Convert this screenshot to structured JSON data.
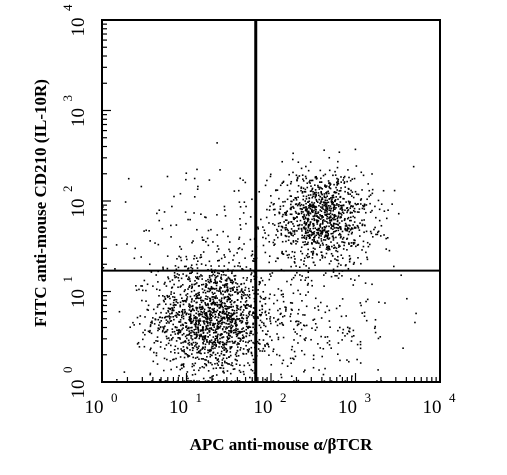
{
  "chart_data": {
    "type": "scatter",
    "subtype": "flow-cytometry-dot-plot",
    "xlabel": "APC anti-mouse α/βTCR",
    "ylabel": "FITC anti-mouse CD210 (IL-10R)",
    "x_scale": "log",
    "y_scale": "log",
    "xlim": [
      1,
      10000
    ],
    "ylim": [
      1,
      10000
    ],
    "x_ticks": [
      {
        "base": "10",
        "exp": "0"
      },
      {
        "base": "10",
        "exp": "1"
      },
      {
        "base": "10",
        "exp": "2"
      },
      {
        "base": "10",
        "exp": "3"
      },
      {
        "base": "10",
        "exp": "4"
      }
    ],
    "y_ticks": [
      {
        "base": "10",
        "exp": "0"
      },
      {
        "base": "10",
        "exp": "1"
      },
      {
        "base": "10",
        "exp": "2"
      },
      {
        "base": "10",
        "exp": "3"
      },
      {
        "base": "10",
        "exp": "4"
      }
    ],
    "quadrant_gates": {
      "x": 66,
      "y": 17
    },
    "populations": [
      {
        "center_x": 20,
        "center_y": 5,
        "spread_log_x": 0.35,
        "spread_log_y": 0.32,
        "events": 1600
      },
      {
        "center_x": 400,
        "center_y": 65,
        "spread_log_x": 0.3,
        "spread_log_y": 0.26,
        "events": 1100
      },
      {
        "center_x": 250,
        "center_y": 4,
        "spread_log_x": 0.55,
        "spread_log_y": 0.3,
        "events": 250
      },
      {
        "center_x": 15,
        "center_y": 40,
        "spread_log_x": 0.5,
        "spread_log_y": 0.35,
        "events": 120
      }
    ],
    "grid": false,
    "legend": "none",
    "point_color": "#000000"
  }
}
